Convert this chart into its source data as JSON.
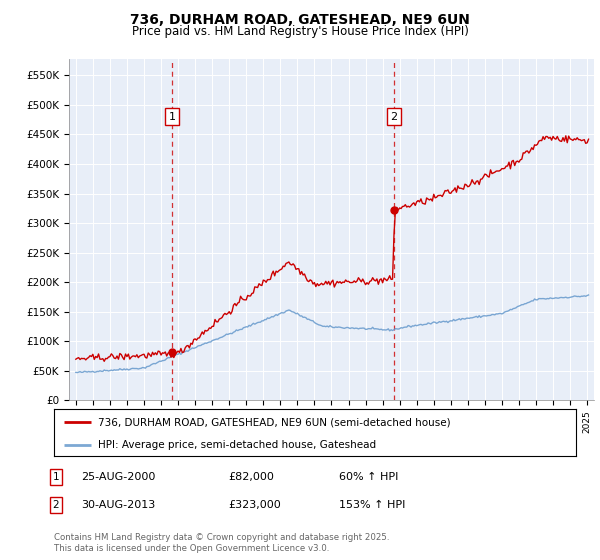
{
  "title1": "736, DURHAM ROAD, GATESHEAD, NE9 6UN",
  "title2": "Price paid vs. HM Land Registry's House Price Index (HPI)",
  "ylabel_ticks": [
    "£0",
    "£50K",
    "£100K",
    "£150K",
    "£200K",
    "£250K",
    "£300K",
    "£350K",
    "£400K",
    "£450K",
    "£500K",
    "£550K"
  ],
  "ytick_vals": [
    0,
    50000,
    100000,
    150000,
    200000,
    250000,
    300000,
    350000,
    400000,
    450000,
    500000,
    550000
  ],
  "ylim": [
    0,
    578000
  ],
  "xlim_start": 1994.6,
  "xlim_end": 2025.4,
  "plot_bg": "#e8eef8",
  "red_color": "#cc0000",
  "blue_color": "#6699cc",
  "marker1_x": 2000.65,
  "marker1_y": 82000,
  "marker2_x": 2013.66,
  "marker2_y": 323000,
  "legend_line1": "736, DURHAM ROAD, GATESHEAD, NE9 6UN (semi-detached house)",
  "legend_line2": "HPI: Average price, semi-detached house, Gateshead",
  "ann1_box": "1",
  "ann1_date": "25-AUG-2000",
  "ann1_price": "£82,000",
  "ann1_hpi": "60% ↑ HPI",
  "ann2_box": "2",
  "ann2_date": "30-AUG-2013",
  "ann2_price": "£323,000",
  "ann2_hpi": "153% ↑ HPI",
  "footer": "Contains HM Land Registry data © Crown copyright and database right 2025.\nThis data is licensed under the Open Government Licence v3.0."
}
